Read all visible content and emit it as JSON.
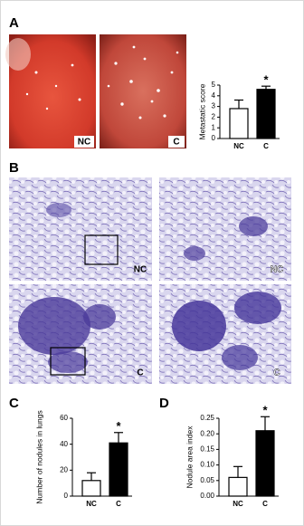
{
  "panel_b": "B",
  "photo_labels": [
    "NC",
    "C"
  ],
  "histology_labels": [
    "NC",
    "NC",
    "C",
    "C"
  ],
  "chart_data": [
    {
      "type": "bar",
      "panel": "A",
      "ylabel": "Metastatic score",
      "categories": [
        "NC",
        "C"
      ],
      "values": [
        2.8,
        4.6
      ],
      "errors": [
        0.8,
        0.3
      ],
      "colors": [
        "#ffffff",
        "#000000"
      ],
      "annotation": "*",
      "ylim": [
        0,
        5
      ],
      "yticks": [
        0,
        1,
        2,
        3,
        4,
        5
      ]
    },
    {
      "type": "bar",
      "panel": "C",
      "ylabel": "Number of nodules in lungs",
      "categories": [
        "NC",
        "C"
      ],
      "values": [
        12,
        41
      ],
      "errors": [
        6,
        8
      ],
      "colors": [
        "#ffffff",
        "#000000"
      ],
      "annotation": "*",
      "ylim": [
        0,
        60
      ],
      "yticks": [
        0,
        20,
        40,
        60
      ]
    },
    {
      "type": "bar",
      "panel": "D",
      "ylabel": "Nodule area index",
      "categories": [
        "NC",
        "C"
      ],
      "values": [
        0.06,
        0.21
      ],
      "errors": [
        0.035,
        0.045
      ],
      "colors": [
        "#ffffff",
        "#000000"
      ],
      "annotation": "*",
      "ylim": [
        0,
        0.25
      ],
      "yticks": [
        {
          "value": 0,
          "label": "0.00"
        },
        {
          "value": 0.05,
          "label": "0.05"
        },
        {
          "value": 0.1,
          "label": "0.10"
        },
        {
          "value": 0.15,
          "label": "0.15"
        },
        {
          "value": 0.2,
          "label": "0.20"
        },
        {
          "value": 0.25,
          "label": "0.25"
        }
      ]
    }
  ]
}
